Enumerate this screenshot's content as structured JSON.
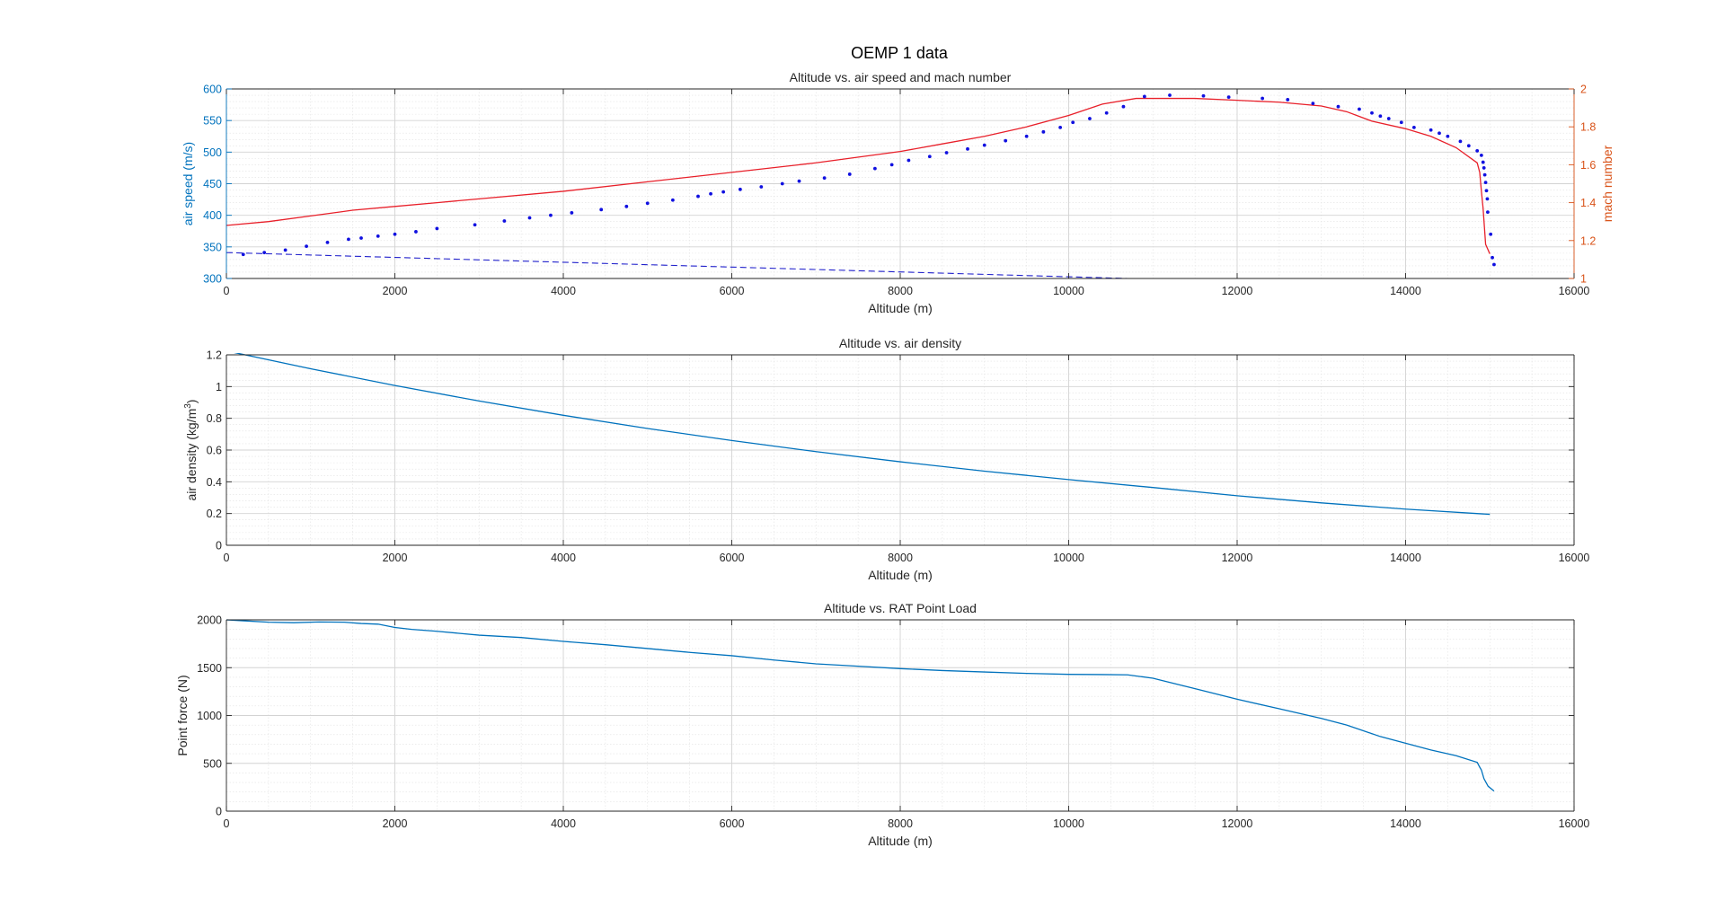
{
  "figure": {
    "title": "OEMP 1 data"
  },
  "colors": {
    "left_axis": "#0072BD",
    "right_axis": "#D95319",
    "mach_line": "#E8202A",
    "speed_dots": "#1010E0",
    "dashed_line": "#2222CC",
    "series_blue": "#0072BD",
    "axis_dark": "#262626"
  },
  "chart_data": [
    {
      "type": "line",
      "title": "Altitude vs. air speed and mach number",
      "xlabel": "Altitude (m)",
      "ylabel": "air speed (m/s)",
      "ylabel_right": "mach number",
      "xlim": [
        0,
        16000
      ],
      "ylim": [
        300,
        600
      ],
      "ylim_right": [
        1,
        2
      ],
      "xticks": [
        0,
        2000,
        4000,
        6000,
        8000,
        10000,
        12000,
        14000,
        16000
      ],
      "yticks": [
        300,
        350,
        400,
        450,
        500,
        550,
        600
      ],
      "yticks_right": [
        1,
        1.2,
        1.4,
        1.6,
        1.8,
        2
      ],
      "grid": true,
      "series": [
        {
          "axis": "right",
          "style": "solid",
          "points": [
            [
              0,
              1.28
            ],
            [
              500,
              1.3
            ],
            [
              1000,
              1.33
            ],
            [
              1500,
              1.36
            ],
            [
              2000,
              1.38
            ],
            [
              2500,
              1.4
            ],
            [
              3000,
              1.42
            ],
            [
              4000,
              1.46
            ],
            [
              5000,
              1.51
            ],
            [
              6000,
              1.56
            ],
            [
              7000,
              1.61
            ],
            [
              8000,
              1.67
            ],
            [
              8500,
              1.71
            ],
            [
              9000,
              1.75
            ],
            [
              9500,
              1.8
            ],
            [
              10000,
              1.86
            ],
            [
              10400,
              1.92
            ],
            [
              10800,
              1.95
            ],
            [
              11500,
              1.95
            ],
            [
              12000,
              1.94
            ],
            [
              12500,
              1.93
            ],
            [
              13000,
              1.91
            ],
            [
              13300,
              1.88
            ],
            [
              13600,
              1.83
            ],
            [
              14000,
              1.79
            ],
            [
              14300,
              1.75
            ],
            [
              14600,
              1.69
            ],
            [
              14850,
              1.61
            ],
            [
              14880,
              1.56
            ],
            [
              14900,
              1.46
            ],
            [
              14920,
              1.37
            ],
            [
              14950,
              1.18
            ],
            [
              15000,
              1.13
            ]
          ]
        },
        {
          "axis": "left",
          "style": "dots",
          "points": [
            [
              200,
              338
            ],
            [
              450,
              341
            ],
            [
              700,
              345
            ],
            [
              950,
              351
            ],
            [
              1200,
              357
            ],
            [
              1450,
              362
            ],
            [
              1600,
              364
            ],
            [
              1800,
              367
            ],
            [
              2000,
              370
            ],
            [
              2250,
              374
            ],
            [
              2500,
              379
            ],
            [
              2950,
              385
            ],
            [
              3300,
              391
            ],
            [
              3600,
              396
            ],
            [
              3850,
              400
            ],
            [
              4100,
              404
            ],
            [
              4450,
              409
            ],
            [
              4750,
              414
            ],
            [
              5000,
              419
            ],
            [
              5300,
              424
            ],
            [
              5600,
              430
            ],
            [
              5750,
              434
            ],
            [
              5900,
              437
            ],
            [
              6100,
              441
            ],
            [
              6350,
              445
            ],
            [
              6600,
              450
            ],
            [
              6800,
              454
            ],
            [
              7100,
              459
            ],
            [
              7400,
              465
            ],
            [
              7700,
              474
            ],
            [
              7900,
              480
            ],
            [
              8100,
              487
            ],
            [
              8350,
              493
            ],
            [
              8550,
              499
            ],
            [
              8800,
              505
            ],
            [
              9000,
              511
            ],
            [
              9250,
              518
            ],
            [
              9500,
              525
            ],
            [
              9700,
              532
            ],
            [
              9900,
              539
            ],
            [
              10050,
              547
            ],
            [
              10250,
              553
            ],
            [
              10450,
              562
            ],
            [
              10650,
              572
            ],
            [
              10900,
              588
            ],
            [
              11200,
              590
            ],
            [
              11600,
              589
            ],
            [
              11900,
              587
            ],
            [
              12300,
              585
            ],
            [
              12600,
              583
            ],
            [
              12900,
              577
            ],
            [
              13200,
              572
            ],
            [
              13450,
              568
            ],
            [
              13600,
              562
            ],
            [
              13700,
              557
            ],
            [
              13800,
              553
            ],
            [
              13950,
              547
            ],
            [
              14100,
              539
            ],
            [
              14300,
              535
            ],
            [
              14400,
              530
            ],
            [
              14500,
              525
            ],
            [
              14650,
              517
            ],
            [
              14750,
              510
            ],
            [
              14850,
              502
            ],
            [
              14900,
              495
            ],
            [
              14920,
              484
            ],
            [
              14930,
              475
            ],
            [
              14940,
              464
            ],
            [
              14950,
              452
            ],
            [
              14960,
              439
            ],
            [
              14970,
              426
            ],
            [
              14975,
              405
            ],
            [
              15010,
              370
            ],
            [
              15030,
              333
            ],
            [
              15050,
              322
            ]
          ]
        },
        {
          "axis": "left",
          "style": "dashed",
          "points": [
            [
              0,
              341
            ],
            [
              10700,
              300
            ]
          ]
        }
      ]
    },
    {
      "type": "line",
      "title": "Altitude vs. air density",
      "xlabel": "Altitude (m)",
      "ylabel": "air density (kg/m",
      "ylabel_sup": "3",
      "ylabel_end": ")",
      "xlim": [
        0,
        16000
      ],
      "ylim": [
        0,
        1.2
      ],
      "xticks": [
        0,
        2000,
        4000,
        6000,
        8000,
        10000,
        12000,
        14000,
        16000
      ],
      "yticks": [
        0,
        0.2,
        0.4,
        0.6,
        0.8,
        1,
        1.2
      ],
      "grid": true,
      "series": [
        {
          "points": [
            [
              0,
              1.225
            ],
            [
              1000,
              1.112
            ],
            [
              2000,
              1.007
            ],
            [
              3000,
              0.909
            ],
            [
              4000,
              0.819
            ],
            [
              5000,
              0.736
            ],
            [
              6000,
              0.66
            ],
            [
              7000,
              0.59
            ],
            [
              8000,
              0.526
            ],
            [
              9000,
              0.467
            ],
            [
              10000,
              0.414
            ],
            [
              11000,
              0.364
            ],
            [
              12000,
              0.312
            ],
            [
              13000,
              0.267
            ],
            [
              14000,
              0.228
            ],
            [
              15000,
              0.195
            ]
          ]
        }
      ]
    },
    {
      "type": "line",
      "title": "Altitude vs. RAT Point Load",
      "xlabel": "Altitude (m)",
      "ylabel": "Point force (N)",
      "xlim": [
        0,
        16000
      ],
      "ylim": [
        0,
        2000
      ],
      "xticks": [
        0,
        2000,
        4000,
        6000,
        8000,
        10000,
        12000,
        14000,
        16000
      ],
      "yticks": [
        0,
        500,
        1000,
        1500,
        2000
      ],
      "grid": true,
      "series": [
        {
          "points": [
            [
              0,
              2000
            ],
            [
              200,
              1990
            ],
            [
              500,
              1975
            ],
            [
              800,
              1970
            ],
            [
              1100,
              1978
            ],
            [
              1400,
              1975
            ],
            [
              1600,
              1962
            ],
            [
              1800,
              1955
            ],
            [
              2000,
              1920
            ],
            [
              2200,
              1900
            ],
            [
              2500,
              1880
            ],
            [
              3000,
              1840
            ],
            [
              3500,
              1815
            ],
            [
              4000,
              1775
            ],
            [
              4500,
              1740
            ],
            [
              5000,
              1700
            ],
            [
              5500,
              1660
            ],
            [
              6000,
              1625
            ],
            [
              6500,
              1580
            ],
            [
              7000,
              1540
            ],
            [
              7500,
              1515
            ],
            [
              8000,
              1490
            ],
            [
              8500,
              1470
            ],
            [
              9000,
              1455
            ],
            [
              9500,
              1440
            ],
            [
              10000,
              1430
            ],
            [
              10400,
              1428
            ],
            [
              10700,
              1425
            ],
            [
              11000,
              1390
            ],
            [
              11500,
              1280
            ],
            [
              12000,
              1170
            ],
            [
              12500,
              1070
            ],
            [
              13000,
              970
            ],
            [
              13300,
              900
            ],
            [
              13700,
              780
            ],
            [
              14000,
              710
            ],
            [
              14300,
              640
            ],
            [
              14600,
              580
            ],
            [
              14850,
              510
            ],
            [
              14880,
              460
            ],
            [
              14900,
              430
            ],
            [
              14930,
              340
            ],
            [
              14980,
              260
            ],
            [
              15050,
              210
            ]
          ]
        }
      ]
    }
  ]
}
